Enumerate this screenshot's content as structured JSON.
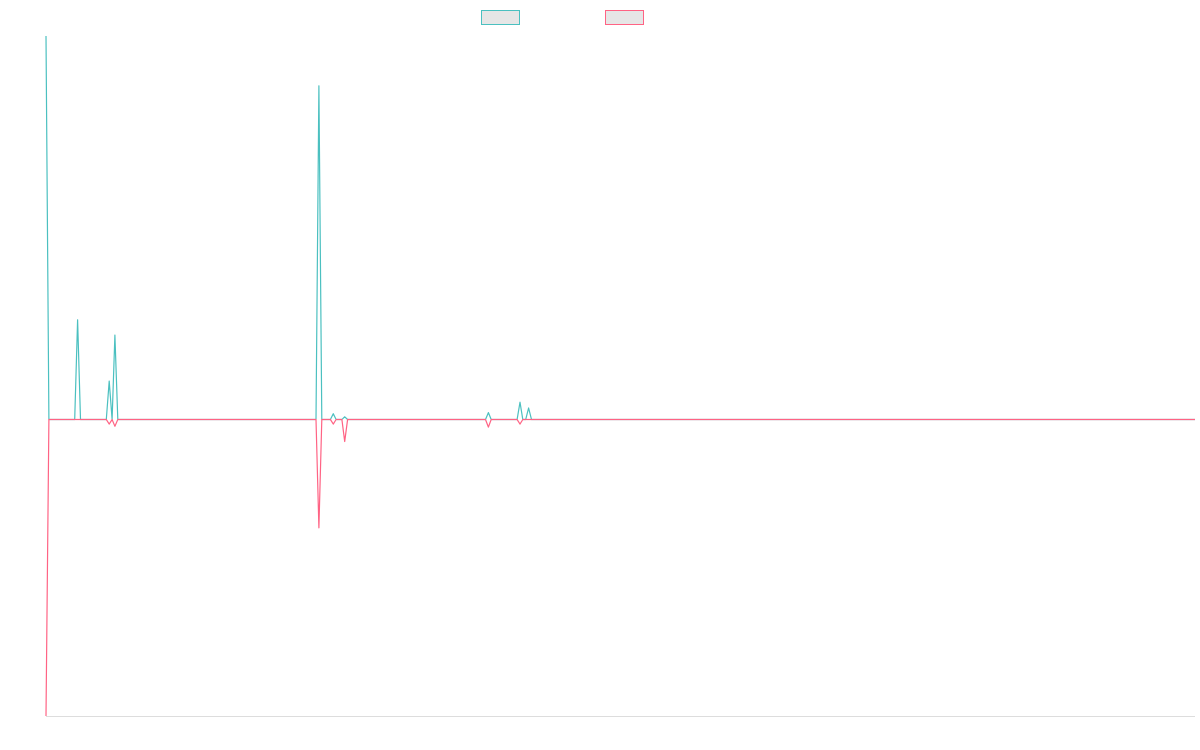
{
  "chart_data": {
    "type": "line",
    "title": "",
    "xlabel": "",
    "ylabel": "",
    "ylim": [
      -1,
      1
    ],
    "xlim": [
      0,
      400
    ],
    "grid": false,
    "legend_position": "top-center",
    "colors": {
      "series_a": "#4bc0c0",
      "series_b": "#ff6384",
      "axis": "#dddddd"
    },
    "series": [
      {
        "key": "series_a",
        "name": "",
        "points": [
          [
            0,
            1.0
          ],
          [
            1,
            0
          ],
          [
            10,
            0
          ],
          [
            11,
            0.26
          ],
          [
            12,
            0
          ],
          [
            21,
            0
          ],
          [
            22,
            0.1
          ],
          [
            23,
            0
          ],
          [
            24,
            0.22
          ],
          [
            25,
            0
          ],
          [
            94,
            0
          ],
          [
            95,
            0.87
          ],
          [
            96,
            0
          ],
          [
            99,
            0
          ],
          [
            100,
            0.015
          ],
          [
            101,
            0
          ],
          [
            103,
            0
          ],
          [
            104,
            0.007
          ],
          [
            105,
            0
          ],
          [
            153,
            0
          ],
          [
            154,
            0.018
          ],
          [
            155,
            0
          ],
          [
            164,
            0
          ],
          [
            165,
            0.045
          ],
          [
            166,
            0
          ],
          [
            167,
            0
          ],
          [
            168,
            0.03
          ],
          [
            169,
            0
          ],
          [
            400,
            0
          ]
        ]
      },
      {
        "key": "series_b",
        "name": "",
        "points": [
          [
            0,
            -0.78
          ],
          [
            1,
            0
          ],
          [
            21,
            0
          ],
          [
            22,
            -0.012
          ],
          [
            23,
            0
          ],
          [
            24,
            -0.018
          ],
          [
            25,
            0
          ],
          [
            94,
            0
          ],
          [
            95,
            -0.285
          ],
          [
            96,
            0
          ],
          [
            99,
            0
          ],
          [
            100,
            -0.012
          ],
          [
            101,
            0
          ],
          [
            103,
            0
          ],
          [
            104,
            -0.058
          ],
          [
            105,
            0
          ],
          [
            153,
            0
          ],
          [
            154,
            -0.02
          ],
          [
            155,
            0
          ],
          [
            164,
            0
          ],
          [
            165,
            -0.012
          ],
          [
            166,
            0
          ],
          [
            400,
            0
          ]
        ]
      }
    ]
  }
}
